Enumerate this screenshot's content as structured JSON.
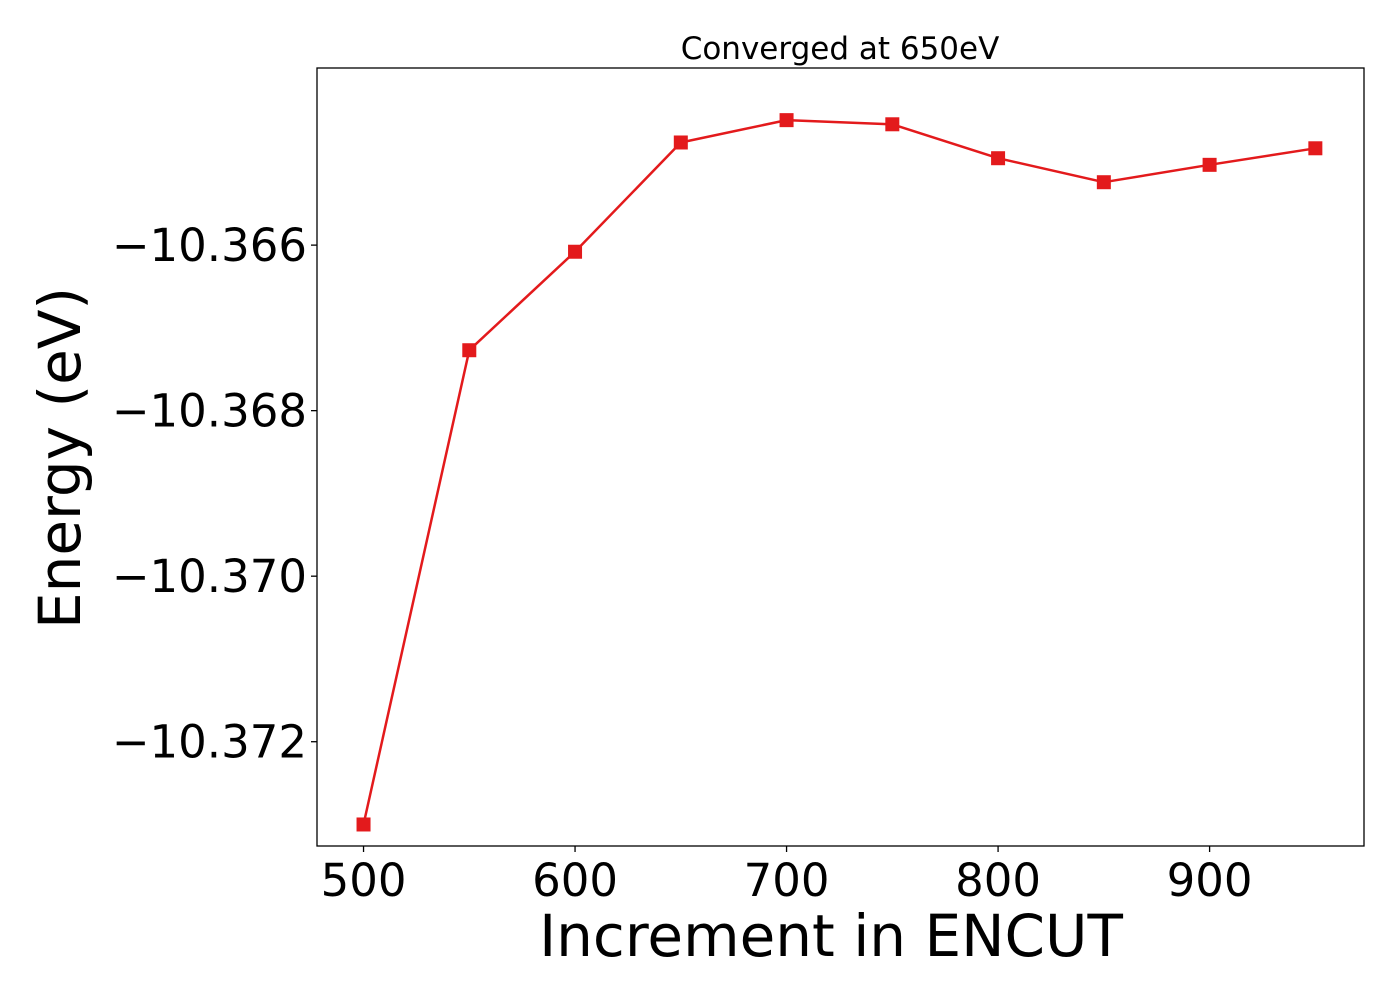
{
  "chart_data": {
    "type": "line",
    "title": "Converged at 650eV",
    "xlabel": "Increment in ENCUT",
    "ylabel": "Energy (eV)",
    "x": [
      500,
      550,
      600,
      650,
      700,
      750,
      800,
      850,
      900,
      950
    ],
    "series": [
      {
        "values": [
          -10.373,
          -10.36727,
          -10.36608,
          -10.36476,
          -10.36449,
          -10.36454,
          -10.36495,
          -10.36524,
          -10.36503,
          -10.36483
        ],
        "color": "#e31a1c",
        "marker": "square"
      }
    ],
    "xlim": [
      478,
      973
    ],
    "ylim": [
      -10.37326,
      -10.36386
    ],
    "xticks": [
      500,
      600,
      700,
      800,
      900
    ],
    "xtick_labels": [
      "500",
      "600",
      "700",
      "800",
      "900"
    ],
    "yticks": [
      -10.366,
      -10.368,
      -10.37,
      -10.372
    ],
    "ytick_labels": [
      "−10.366",
      "−10.368",
      "−10.370",
      "−10.372"
    ],
    "grid": false,
    "legend": false
  }
}
